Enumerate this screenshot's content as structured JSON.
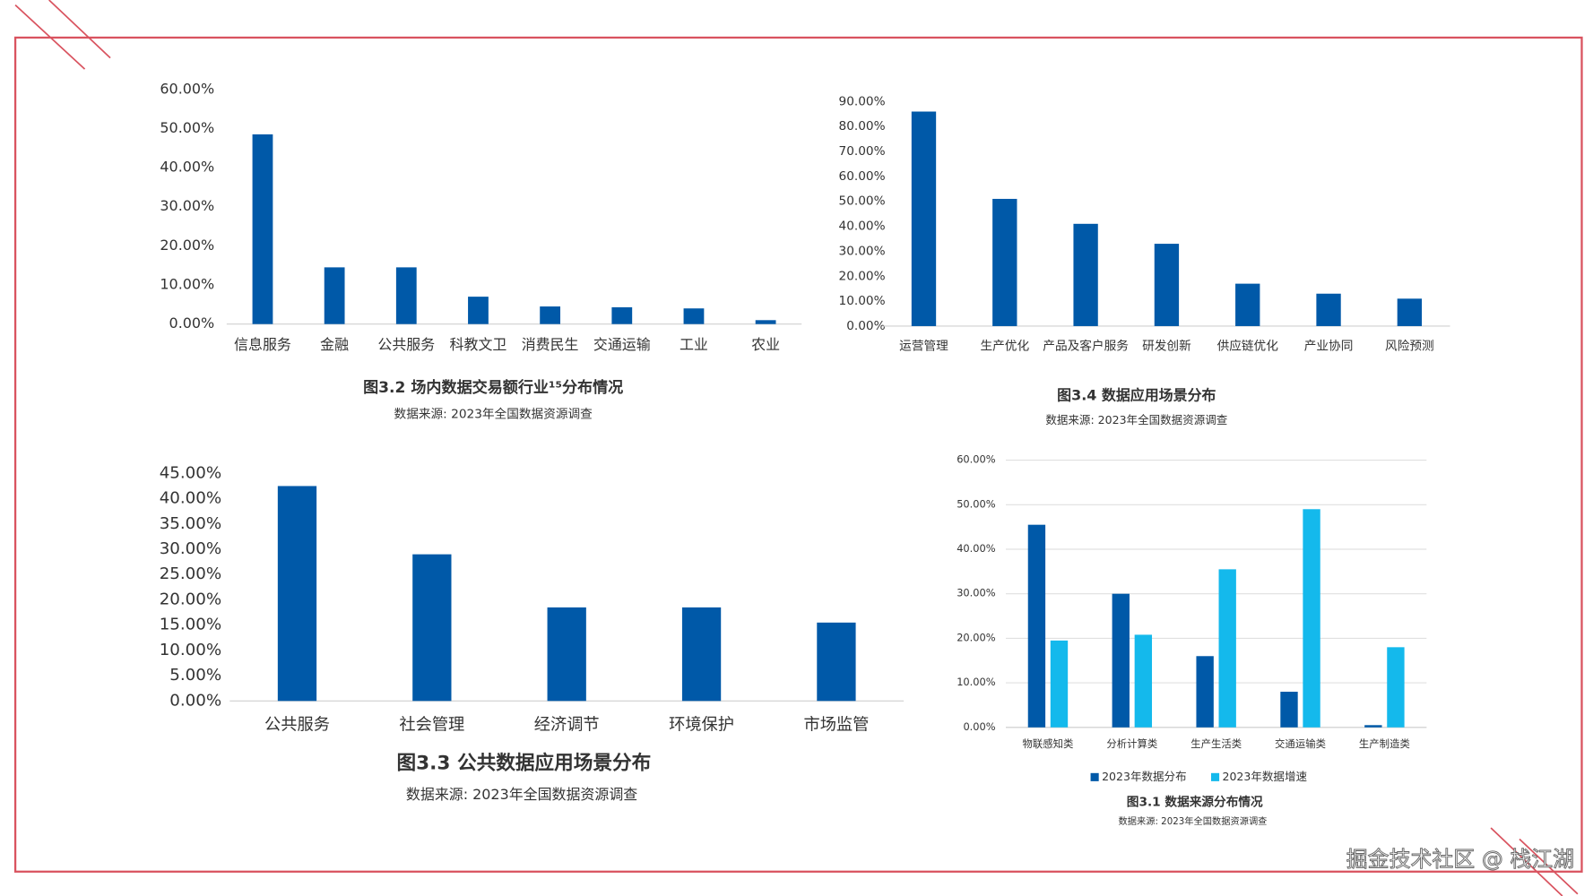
{
  "chart_data": [
    {
      "type": "bar",
      "title": "图3.2 场内数据交易额行业¹⁵分布情况",
      "subtitle": "数据来源: 2023年全国数据资源调查",
      "categories": [
        "信息服务",
        "金融",
        "公共服务",
        "科教文卫",
        "消费民生",
        "交通运输",
        "工业",
        "农业"
      ],
      "values": [
        48.5,
        14.5,
        14.5,
        7,
        4.5,
        4.3,
        4,
        1
      ],
      "color": "#0059a8",
      "ylim": [
        0,
        60
      ],
      "yticks": [
        {
          "value": 0,
          "label": "0.00%"
        },
        {
          "value": 10,
          "label": "10.00%"
        },
        {
          "value": 20,
          "label": "20.00%"
        },
        {
          "value": 30,
          "label": "30.00%"
        },
        {
          "value": 40,
          "label": "40.00%"
        },
        {
          "value": 50,
          "label": "50.00%"
        },
        {
          "value": 60,
          "label": "60.00%"
        }
      ],
      "grid": false
    },
    {
      "type": "bar",
      "title": "图3.4 数据应用场景分布",
      "subtitle": "数据来源: 2023年全国数据资源调查",
      "categories": [
        "运营管理",
        "生产优化",
        "产品及客户服务",
        "研发创新",
        "供应链优化",
        "产业协同",
        "风险预测"
      ],
      "values": [
        86,
        51,
        41,
        33,
        17,
        13,
        11
      ],
      "color": "#0059a8",
      "ylim": [
        0,
        90
      ],
      "yticks": [
        {
          "value": 0,
          "label": "0.00%"
        },
        {
          "value": 10,
          "label": "10.00%"
        },
        {
          "value": 20,
          "label": "20.00%"
        },
        {
          "value": 30,
          "label": "30.00%"
        },
        {
          "value": 40,
          "label": "40.00%"
        },
        {
          "value": 50,
          "label": "50.00%"
        },
        {
          "value": 60,
          "label": "60.00%"
        },
        {
          "value": 70,
          "label": "70.00%"
        },
        {
          "value": 80,
          "label": "80.00%"
        },
        {
          "value": 90,
          "label": "90.00%"
        }
      ],
      "grid": false
    },
    {
      "type": "bar",
      "title": "图3.3 公共数据应用场景分布",
      "subtitle": "数据来源: 2023年全国数据资源调查",
      "categories": [
        "公共服务",
        "社会管理",
        "经济调节",
        "环境保护",
        "市场监管"
      ],
      "values": [
        42.5,
        29,
        18.5,
        18.5,
        15.5
      ],
      "color": "#0059a8",
      "ylim": [
        0,
        45
      ],
      "yticks": [
        {
          "value": 0,
          "label": "0.00%"
        },
        {
          "value": 5,
          "label": "5.00%"
        },
        {
          "value": 10,
          "label": "10.00%"
        },
        {
          "value": 15,
          "label": "15.00%"
        },
        {
          "value": 20,
          "label": "20.00%"
        },
        {
          "value": 25,
          "label": "25.00%"
        },
        {
          "value": 30,
          "label": "30.00%"
        },
        {
          "value": 35,
          "label": "35.00%"
        },
        {
          "value": 40,
          "label": "40.00%"
        },
        {
          "value": 45,
          "label": "45.00%"
        }
      ],
      "grid": false
    },
    {
      "type": "grouped_bar",
      "title": "图3.1 数据来源分布情况",
      "subtitle": "数据来源: 2023年全国数据资源调查",
      "categories": [
        "物联感知类",
        "分析计算类",
        "生产生活类",
        "交通运输类",
        "生产制造类"
      ],
      "series": [
        {
          "name": "2023年数据分布",
          "color": "#0059a8",
          "values": [
            45.5,
            30,
            16,
            8,
            0.5
          ]
        },
        {
          "name": "2023年数据增速",
          "color": "#14b9ec",
          "values": [
            19.5,
            20.8,
            35.5,
            49,
            18
          ]
        }
      ],
      "ylim": [
        0,
        60
      ],
      "yticks": [
        {
          "value": 0,
          "label": "0.00%"
        },
        {
          "value": 10,
          "label": "10.00%"
        },
        {
          "value": 20,
          "label": "20.00%"
        },
        {
          "value": 30,
          "label": "30.00%"
        },
        {
          "value": 40,
          "label": "40.00%"
        },
        {
          "value": 50,
          "label": "50.00%"
        },
        {
          "value": 60,
          "label": "60.00%"
        }
      ],
      "grid": true,
      "legend": "bottom"
    }
  ],
  "watermark": "掘金技术社区 @ 栈江湖"
}
